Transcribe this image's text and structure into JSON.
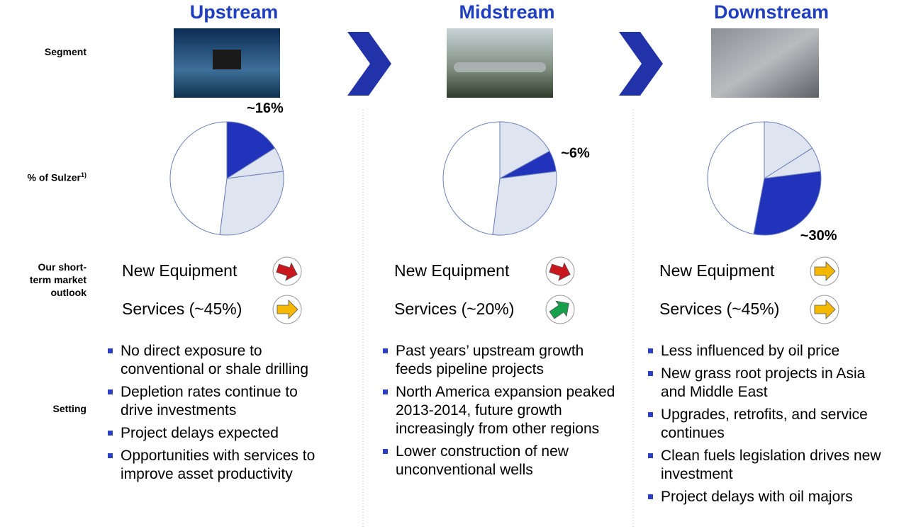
{
  "row_labels": {
    "segment": "Segment",
    "share": "% of Sulzer",
    "share_note": "1)",
    "outlook": "Our short-term market outlook",
    "setting": "Setting"
  },
  "columns": [
    {
      "title": "Upstream",
      "outlook": [
        {
          "label": "New Equipment",
          "color": "#c8171d",
          "direction": "down"
        },
        {
          "label": "Services (~45%)",
          "color": "#f5b800",
          "direction": "flat"
        }
      ],
      "setting": [
        "No direct exposure to conventional or shale drilling",
        "Depletion rates continue to drive investments",
        "Project delays expected",
        "Opportunities with services to improve asset productivity"
      ]
    },
    {
      "title": "Midstream",
      "outlook": [
        {
          "label": "New Equipment",
          "color": "#c8171d",
          "direction": "down"
        },
        {
          "label": "Services (~20%)",
          "color": "#17a04a",
          "direction": "up"
        }
      ],
      "setting": [
        "Past years’ upstream growth feeds pipeline projects",
        "North America expansion peaked 2013-2014, future growth increasingly from other regions",
        "Lower construction of new unconventional wells"
      ]
    },
    {
      "title": "Downstream",
      "outlook": [
        {
          "label": "New Equipment",
          "color": "#f5b800",
          "direction": "flat"
        },
        {
          "label": "Services (~45%)",
          "color": "#f5b800",
          "direction": "flat"
        }
      ],
      "setting": [
        "Less influenced by oil price",
        "New grass root projects in Asia and Middle East",
        "Upgrades, retrofits, and service continues",
        "Clean fuels legislation drives new investment",
        "Project delays with oil majors"
      ]
    }
  ],
  "chart_data": [
    {
      "type": "pie",
      "categories": [
        null,
        null,
        null,
        null
      ],
      "values": [
        16,
        7,
        29,
        48
      ],
      "value_labels": [
        "~16%",
        null,
        null,
        null
      ],
      "colors": [
        "#2233bb",
        "#dfe4f1",
        "#dfe4f1",
        "#ffffff"
      ]
    },
    {
      "type": "pie",
      "categories": [
        null,
        null,
        null,
        null
      ],
      "values": [
        17,
        6,
        29,
        48
      ],
      "value_labels": [
        null,
        "~6%",
        null,
        null
      ],
      "colors": [
        "#dfe4f1",
        "#2233bb",
        "#dfe4f1",
        "#ffffff"
      ]
    },
    {
      "type": "pie",
      "categories": [
        null,
        null,
        null,
        null
      ],
      "values": [
        16,
        7,
        30,
        47
      ],
      "value_labels": [
        null,
        null,
        "~30%",
        null
      ],
      "colors": [
        "#dfe4f1",
        "#dfe4f1",
        "#2233bb",
        "#ffffff"
      ]
    }
  ]
}
